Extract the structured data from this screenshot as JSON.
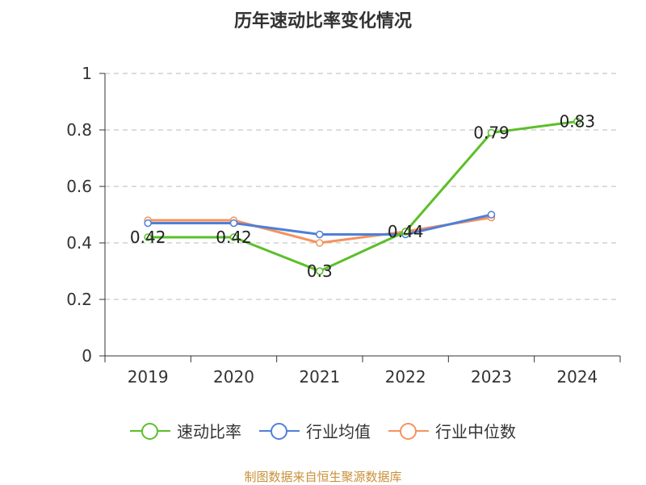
{
  "source_note": "制图数据来自恒生聚源数据库",
  "chart_data": {
    "type": "line",
    "title": "历年速动比率变化情况",
    "categories": [
      "2019",
      "2020",
      "2021",
      "2022",
      "2023",
      "2024"
    ],
    "ylim": [
      0,
      1
    ],
    "yticks": [
      "0",
      "0.2",
      "0.4",
      "0.6",
      "0.8",
      "1"
    ],
    "grid": true,
    "legend_position": "bottom",
    "series": [
      {
        "name": "速动比率",
        "color": "#5cbf2a",
        "values": [
          0.42,
          0.42,
          0.3,
          0.44,
          0.79,
          0.83
        ],
        "labels": [
          "0.42",
          "0.42",
          "0.3",
          "0.44",
          "0.79",
          "0.83"
        ]
      },
      {
        "name": "行业均值",
        "color": "#4f7fd9",
        "values": [
          0.47,
          0.47,
          0.43,
          0.43,
          0.5,
          null
        ]
      },
      {
        "name": "行业中位数",
        "color": "#f5925e",
        "values": [
          0.48,
          0.48,
          0.4,
          0.44,
          0.49,
          null
        ]
      }
    ]
  }
}
